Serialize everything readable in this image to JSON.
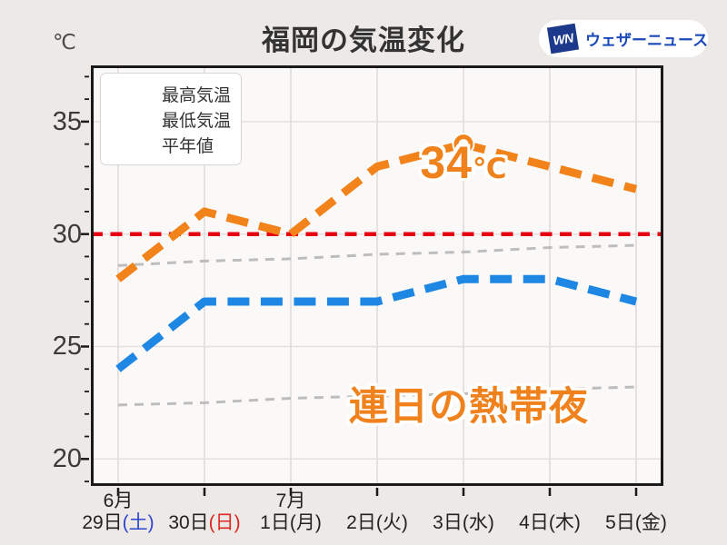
{
  "page": {
    "background": "#ECE9E6"
  },
  "header": {
    "unit_label": "℃",
    "title": "福岡の気温変化",
    "logo": {
      "mark": "WN",
      "name": "ウェザーニュース",
      "mark_color": "#1C398C",
      "name_color": "#1A49B8"
    }
  },
  "legend": {
    "items": [
      {
        "label": "最高気温",
        "color": "#F2831B",
        "style": "thick"
      },
      {
        "label": "最低気温",
        "color": "#1E87E3",
        "style": "thick"
      },
      {
        "label": "平年値",
        "color": "#BDBDBD",
        "style": "thin"
      }
    ]
  },
  "chart_data": {
    "type": "line",
    "title": "福岡の気温変化",
    "ylabel": "℃",
    "ylim": [
      18.8,
      37.5
    ],
    "yticks": [
      20,
      25,
      30,
      35
    ],
    "grid": true,
    "legend_position": "upper left",
    "x_categories": [
      "6月29日(土)",
      "6月30日(日)",
      "7月1日(月)",
      "7月2日(火)",
      "7月3日(水)",
      "7月4日(木)",
      "7月5日(金)"
    ],
    "x_tick_labels": [
      {
        "day": "29日",
        "dow": "(土)",
        "dow_color": "#2F45CF"
      },
      {
        "day": "30日",
        "dow": "(日)",
        "dow_color": "#E02623"
      },
      {
        "day": "1日",
        "dow": "(月)",
        "dow_color": "#222222"
      },
      {
        "day": "2日",
        "dow": "(火)",
        "dow_color": "#222222"
      },
      {
        "day": "3日",
        "dow": "(水)",
        "dow_color": "#222222"
      },
      {
        "day": "4日",
        "dow": "(木)",
        "dow_color": "#222222"
      },
      {
        "day": "5日",
        "dow": "(金)",
        "dow_color": "#222222"
      }
    ],
    "month_labels": [
      {
        "text": "6月",
        "day_index": 0
      },
      {
        "text": "7月",
        "day_index": 2
      }
    ],
    "series": [
      {
        "name": "平年値(最高)",
        "color": "#BDBDBD",
        "width": 3,
        "dash": "10 8",
        "values": [
          28.6,
          28.8,
          28.9,
          29.1,
          29.2,
          29.4,
          29.5
        ]
      },
      {
        "name": "平年値(最低)",
        "color": "#BDBDBD",
        "width": 3,
        "dash": "10 8",
        "values": [
          22.4,
          22.5,
          22.7,
          22.8,
          22.9,
          23.1,
          23.2
        ]
      },
      {
        "name": "最低気温",
        "color": "#1E87E3",
        "width": 9,
        "dash": "24 12.5",
        "values": [
          24,
          27,
          27,
          27,
          28,
          28,
          27
        ]
      },
      {
        "name": "最高気温",
        "color": "#F2831B",
        "width": 9,
        "dash": "24 12.5",
        "values": [
          28,
          31,
          30,
          33,
          34,
          33,
          32
        ]
      }
    ],
    "reference_line": {
      "value": 30,
      "color": "#E60012",
      "width": 4.5,
      "dash": "13 8.5"
    },
    "marker": {
      "series": "最高気温",
      "day_index": 4,
      "value": 34,
      "color": "#F2831B"
    },
    "annotations": [
      {
        "id": "peak",
        "text": "34",
        "suffix": "℃",
        "day_index": 4,
        "color": "#F0821E"
      },
      {
        "id": "tropical",
        "text": "連日の熱帯夜",
        "color": "#F0821E"
      }
    ]
  }
}
